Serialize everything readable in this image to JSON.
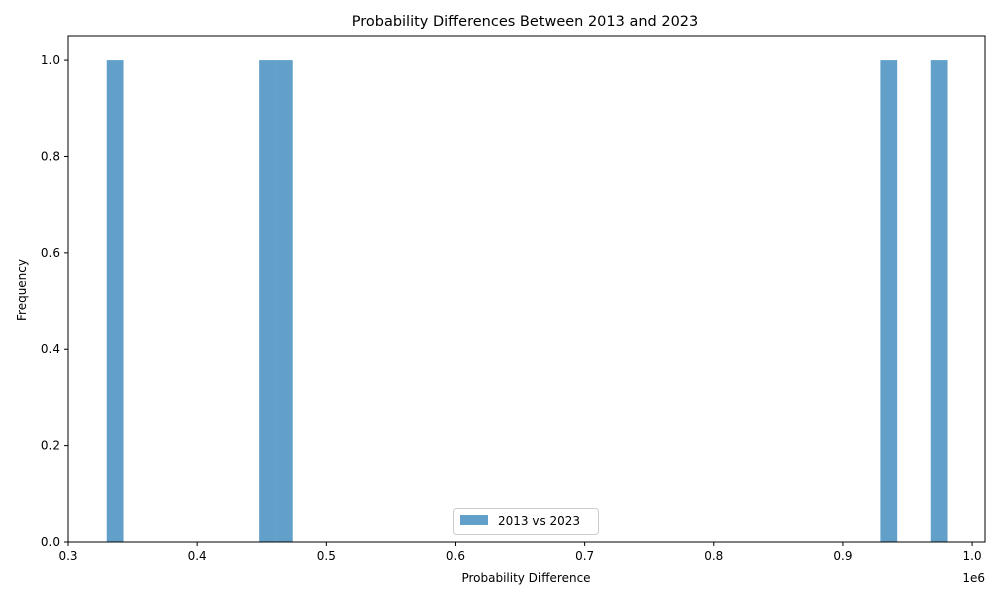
{
  "chart_data": {
    "type": "histogram",
    "title": "Probability Differences Between 2013 and 2023",
    "xlabel": "Probability Difference",
    "ylabel": "Frequency",
    "x_offset_label": "1e6",
    "xlim": [
      0.3,
      1.01
    ],
    "ylim": [
      0.0,
      1.05
    ],
    "x_ticks": [
      0.3,
      0.4,
      0.5,
      0.6,
      0.7,
      0.8,
      0.9,
      1.0
    ],
    "x_tick_labels": [
      "0.3",
      "0.4",
      "0.5",
      "0.6",
      "0.7",
      "0.8",
      "0.9",
      "1.0"
    ],
    "y_ticks": [
      0.0,
      0.2,
      0.4,
      0.6,
      0.8,
      1.0
    ],
    "y_tick_labels": [
      "0.0",
      "0.2",
      "0.4",
      "0.6",
      "0.8",
      "1.0"
    ],
    "grid": false,
    "legend_position": "lower-center",
    "series": [
      {
        "name": "2013 vs 2023",
        "color": "#1f77b4",
        "alpha": 0.7,
        "bins": [
          {
            "x0": 0.33,
            "x1": 0.343,
            "value": 1
          },
          {
            "x0": 0.448,
            "x1": 0.461,
            "value": 1
          },
          {
            "x0": 0.461,
            "x1": 0.474,
            "value": 1
          },
          {
            "x0": 0.929,
            "x1": 0.942,
            "value": 1
          },
          {
            "x0": 0.968,
            "x1": 0.981,
            "value": 1
          }
        ]
      }
    ]
  }
}
